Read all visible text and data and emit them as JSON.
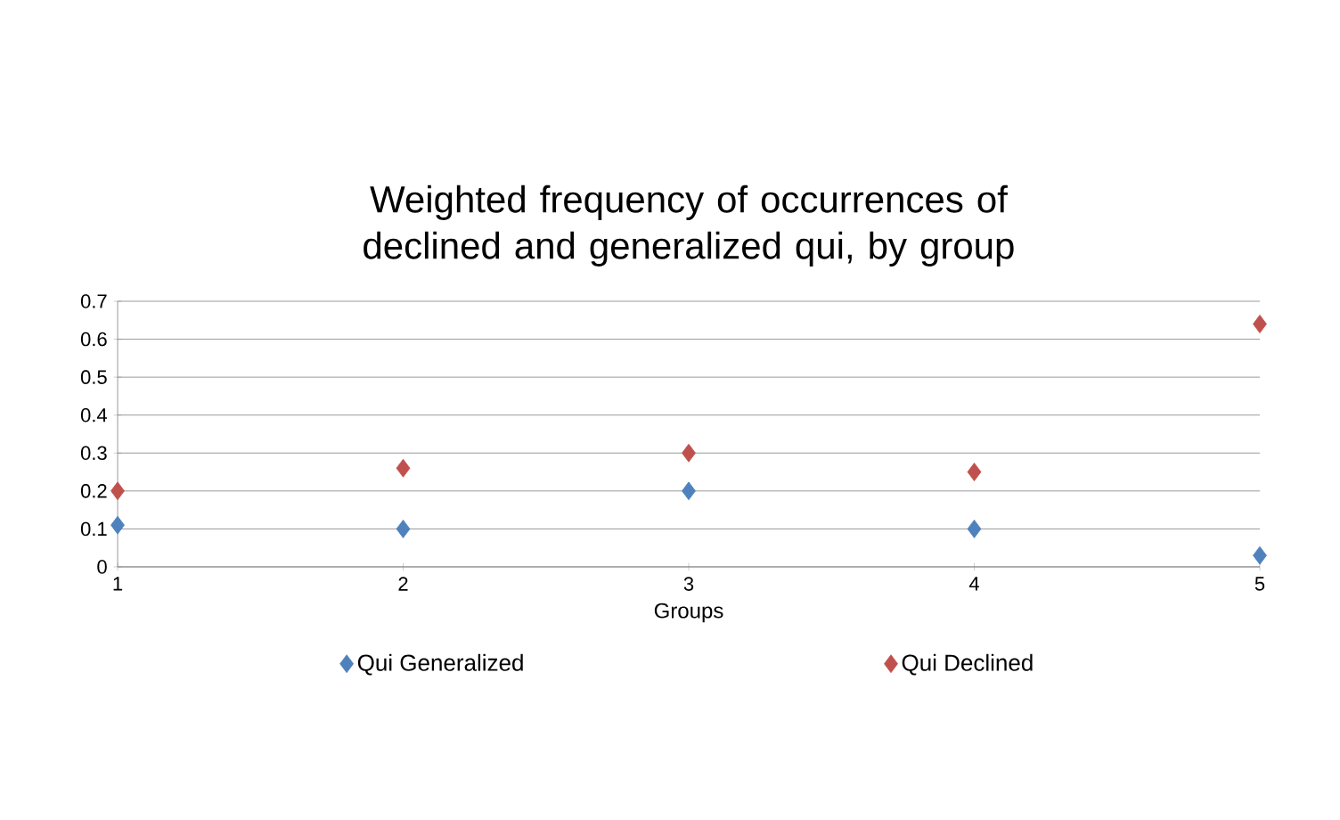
{
  "chart_data": {
    "type": "scatter",
    "title": "Weighted frequency of occurrences of declined and generalized qui, by group",
    "xlabel": "Groups",
    "x": [
      1,
      2,
      3,
      4,
      5
    ],
    "series": [
      {
        "name": "Qui Generalized",
        "color": "#4f81bd",
        "values": [
          0.11,
          0.1,
          0.2,
          0.1,
          0.03
        ]
      },
      {
        "name": "Qui Declined",
        "color": "#c0504d",
        "values": [
          0.2,
          0.26,
          0.3,
          0.25,
          0.64
        ]
      }
    ],
    "xlim": [
      1,
      5
    ],
    "xticks": [
      1,
      2,
      3,
      4,
      5
    ],
    "ylim": [
      0,
      0.7
    ],
    "yticks": [
      0,
      0.1,
      0.2,
      0.3,
      0.4,
      0.5,
      0.6,
      0.7
    ],
    "grid": "y",
    "legend": "bottom",
    "marker": "diamond"
  }
}
